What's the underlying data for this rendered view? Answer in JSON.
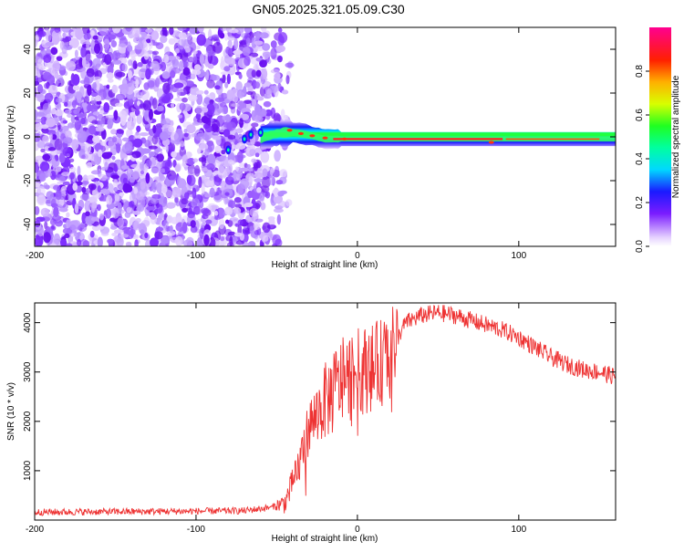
{
  "title": "GN05.2025.321.05.09.C30",
  "chart_data": [
    {
      "id": "spectrogram",
      "type": "heatmap",
      "xlabel": "Height of straight line (km)",
      "ylabel": "Frequency (Hz)",
      "xlim": [
        -200,
        160
      ],
      "ylim": [
        -50,
        50
      ],
      "xticks": [
        -200,
        -100,
        0,
        100
      ],
      "yticks": [
        -40,
        -20,
        0,
        20,
        40
      ],
      "colorbar": {
        "label": "Normalized spectral amplitude",
        "range": [
          0,
          1
        ],
        "ticks": [
          0.0,
          0.2,
          0.4,
          0.6,
          0.8
        ]
      },
      "features": {
        "noise_region_x": [
          -200,
          -60
        ],
        "signal_start_x": -60,
        "carrier_freq_hz": -1,
        "carrier_peak_x": [
          -15,
          90
        ]
      }
    },
    {
      "id": "snr",
      "type": "line",
      "xlabel": "Height of straight line (km)",
      "ylabel": "SNR (10 * v/v)",
      "xlim": [
        -200,
        160
      ],
      "ylim": [
        0,
        4400
      ],
      "xticks": [
        -200,
        -100,
        0,
        100
      ],
      "yticks": [
        1000,
        2000,
        3000,
        4000
      ],
      "series": [
        {
          "name": "SNR",
          "color": "#ee3333",
          "x": [
            -200,
            -150,
            -100,
            -70,
            -55,
            -45,
            -38,
            -30,
            -20,
            -10,
            0,
            10,
            20,
            25,
            30,
            40,
            50,
            60,
            70,
            80,
            90,
            100,
            110,
            120,
            130,
            140,
            150,
            160
          ],
          "y": [
            160,
            170,
            180,
            190,
            250,
            350,
            900,
            1900,
            2400,
            2800,
            3000,
            3100,
            3300,
            3700,
            4000,
            4150,
            4200,
            4150,
            4050,
            3950,
            3850,
            3700,
            3500,
            3300,
            3150,
            3050,
            3000,
            2900
          ]
        }
      ]
    }
  ]
}
